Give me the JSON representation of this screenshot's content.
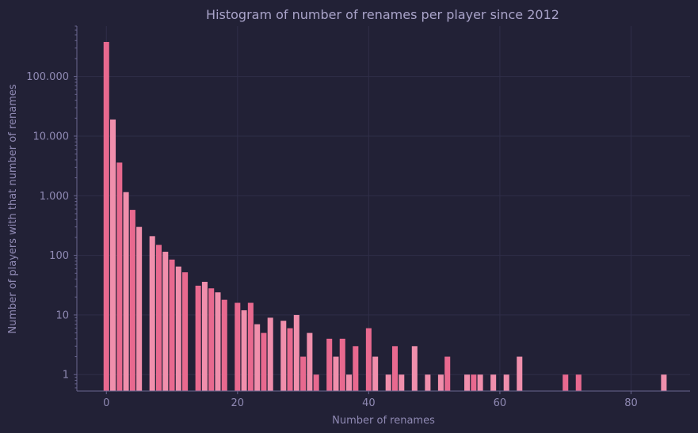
{
  "chart_data": {
    "type": "bar",
    "title": "Histogram of number of renames per player since 2012",
    "xlabel": "Number of renames",
    "ylabel": "Number of players with that number of renames",
    "xlim": [
      -4.5,
      89
    ],
    "ylim": [
      0.53,
      700000
    ],
    "yscale": "log",
    "grid": true,
    "legend": "none",
    "bar_width": 0.85,
    "x_ticks": [
      0,
      20,
      40,
      60,
      80
    ],
    "x_tick_labels": [
      "0",
      "20",
      "40",
      "60",
      "80"
    ],
    "y_ticks": [
      1,
      10,
      100,
      1000,
      10000,
      100000
    ],
    "y_tick_labels": [
      "1",
      "10",
      "100",
      "1.000",
      "10.000",
      "100.000"
    ],
    "colors": [
      "#e8698f",
      "#f08fac"
    ],
    "x": [
      0,
      1,
      2,
      3,
      4,
      5,
      6,
      7,
      8,
      9,
      10,
      11,
      12,
      13,
      14,
      15,
      16,
      17,
      18,
      19,
      20,
      21,
      22,
      23,
      24,
      25,
      26,
      27,
      28,
      29,
      30,
      31,
      32,
      33,
      34,
      35,
      36,
      37,
      38,
      39,
      40,
      41,
      42,
      43,
      44,
      45,
      46,
      47,
      48,
      49,
      50,
      51,
      52,
      53,
      54,
      55,
      56,
      57,
      58,
      59,
      60,
      61,
      62,
      63,
      64,
      65,
      66,
      67,
      68,
      69,
      70,
      71,
      72,
      73,
      74,
      75,
      76,
      77,
      78,
      79,
      80,
      81,
      82,
      83,
      84,
      85
    ],
    "values": [
      380000,
      19000,
      3600,
      1150,
      580,
      300,
      0,
      210,
      150,
      115,
      85,
      65,
      52,
      0,
      31,
      36,
      28,
      24,
      18,
      0,
      16,
      12,
      16,
      7,
      5,
      9,
      0,
      8,
      6,
      10,
      2,
      5,
      1,
      0,
      4,
      2,
      4,
      1,
      3,
      0,
      6,
      2,
      0,
      1,
      3,
      1,
      0,
      3,
      0,
      1,
      0,
      1,
      2,
      0,
      0,
      1,
      1,
      1,
      0,
      1,
      0,
      1,
      0,
      2,
      0,
      0,
      0,
      0,
      0,
      0,
      1,
      0,
      1,
      0,
      0,
      0,
      0,
      0,
      0,
      0,
      0,
      0,
      0,
      0,
      0,
      1
    ]
  }
}
